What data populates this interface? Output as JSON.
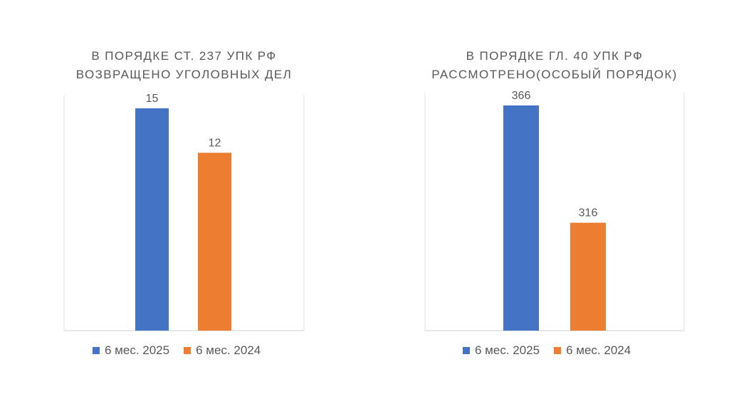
{
  "chart_data": [
    {
      "type": "bar",
      "title_lines": [
        "В ПОРЯДКЕ СТ. 237 УПК РФ",
        "ВОЗВРАЩЕНО УГОЛОВНЫХ ДЕЛ"
      ],
      "series": [
        {
          "name": "6 мес. 2025",
          "values": [
            15
          ],
          "color": "#4472C4"
        },
        {
          "name": "6 мес. 2024",
          "values": [
            12
          ],
          "color": "#ED7D31"
        }
      ],
      "data_labels": [
        "15",
        "12"
      ],
      "ylim": [
        0,
        15
      ],
      "grid": false,
      "legend_position": "bottom"
    },
    {
      "type": "bar",
      "title_lines": [
        "В ПОРЯДКЕ ГЛ. 40 УПК РФ",
        "РАССМОТРЕНО(ОСОБЫЙ ПОРЯДОК)"
      ],
      "series": [
        {
          "name": "6 мес. 2025",
          "values": [
            366
          ],
          "color": "#4472C4"
        },
        {
          "name": "6 мес. 2024",
          "values": [
            316
          ],
          "color": "#ED7D31"
        }
      ],
      "data_labels": [
        "366",
        "316"
      ],
      "ylim": [
        270,
        366
      ],
      "grid": false,
      "legend_position": "bottom"
    }
  ]
}
